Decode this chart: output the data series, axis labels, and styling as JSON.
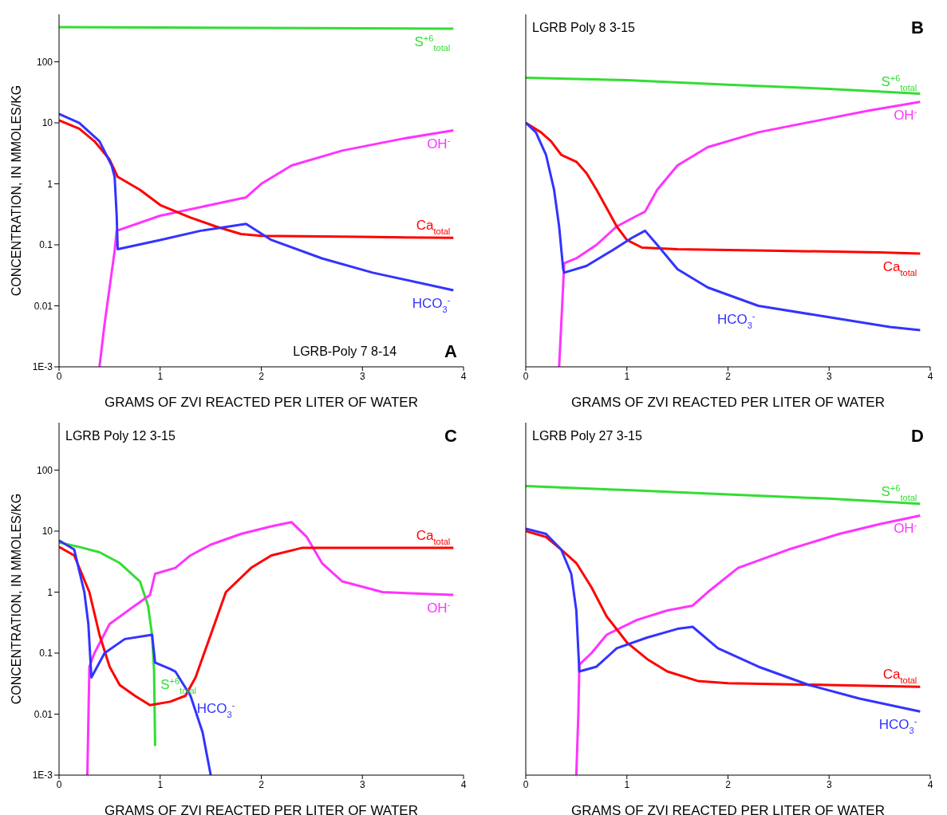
{
  "chart_data": [
    {
      "type": "line",
      "title": "A",
      "annotations": [
        "LGRB-Poly 7 8-14"
      ],
      "xlabel": "GRAMS OF ZVI REACTED PER LITER OF WATER",
      "ylabel": "CONCENTRATION, IN MMOLES/KG",
      "log": "y",
      "xlim": [
        0,
        4
      ],
      "xticks": [
        0,
        1,
        2,
        3,
        4
      ],
      "ylim": [
        0.001,
        600
      ],
      "yticks": [
        {
          "value": 0.001,
          "label": "1E-3"
        },
        0.01,
        0.1,
        1,
        10,
        100
      ],
      "legend": false,
      "grid": false,
      "marker": "none",
      "series": [
        {
          "name": "S$^{+6}$$_{total}$",
          "color": "#33dd33",
          "x": [
            0,
            1,
            2,
            3,
            3.9
          ],
          "values": [
            370,
            365,
            360,
            355,
            350
          ]
        },
        {
          "name": "OH$^{-}$",
          "color": "#ff33ff",
          "x": [
            0.4,
            0.45,
            0.5,
            0.55,
            0.57,
            1,
            1.85,
            2,
            2.3,
            2.8,
            3.4,
            3.9
          ],
          "values": [
            0.001,
            0.005,
            0.02,
            0.08,
            0.17,
            0.3,
            0.6,
            1,
            2,
            3.5,
            5.5,
            7.5
          ]
        },
        {
          "name": "Ca$_{total}$",
          "color": "#ff0000",
          "x": [
            0,
            0.2,
            0.35,
            0.5,
            0.58,
            0.8,
            1,
            1.3,
            1.55,
            1.8,
            2,
            3,
            3.9
          ],
          "values": [
            11,
            8,
            5,
            2.5,
            1.3,
            0.8,
            0.45,
            0.28,
            0.2,
            0.15,
            0.14,
            0.135,
            0.13
          ]
        },
        {
          "name": "HCO$_{3}$$^{-}$",
          "color": "#3333ff",
          "x": [
            0,
            0.2,
            0.4,
            0.52,
            0.55,
            0.57,
            0.58,
            1,
            1.4,
            1.85,
            2.1,
            2.6,
            3.1,
            3.9
          ],
          "values": [
            14,
            10,
            5,
            2,
            1.3,
            0.3,
            0.085,
            0.12,
            0.17,
            0.22,
            0.12,
            0.06,
            0.035,
            0.018
          ]
        }
      ]
    },
    {
      "type": "line",
      "title": "B",
      "annotations": [
        "LGRB Poly 8 3-15"
      ],
      "xlabel": "GRAMS OF ZVI REACTED PER LITER OF WATER",
      "log": "y",
      "xlim": [
        0,
        4
      ],
      "xticks": [
        0,
        1,
        2,
        3,
        4
      ],
      "ylim": [
        0.001,
        600
      ],
      "yticks": [
        0.001,
        0.01,
        0.1,
        1,
        10,
        100
      ],
      "tick_labels": "x",
      "legend": false,
      "grid": false,
      "marker": "none",
      "series": [
        {
          "name": "S$^{+6}$$_{total}$",
          "color": "#33dd33",
          "x": [
            0,
            1,
            2,
            3,
            3.9
          ],
          "values": [
            55,
            50,
            42,
            36,
            30
          ]
        },
        {
          "name": "OH$^{-}$",
          "color": "#ff33ff",
          "x": [
            0.33,
            0.36,
            0.38,
            0.5,
            0.7,
            0.9,
            1.1,
            1.18,
            1.3,
            1.5,
            1.8,
            2.3,
            2.9,
            3.4,
            3.9
          ],
          "values": [
            0.001,
            0.01,
            0.05,
            0.06,
            0.1,
            0.2,
            0.3,
            0.35,
            0.8,
            2,
            4,
            7,
            11,
            16,
            22
          ]
        },
        {
          "name": "Ca$_{total}$",
          "color": "#ff0000",
          "x": [
            0,
            0.15,
            0.25,
            0.35,
            0.5,
            0.6,
            0.7,
            0.8,
            0.9,
            1,
            1.15,
            1.5,
            2.5,
            3.5,
            3.9
          ],
          "values": [
            10,
            7,
            5,
            3,
            2.3,
            1.5,
            0.8,
            0.4,
            0.2,
            0.12,
            0.09,
            0.085,
            0.08,
            0.075,
            0.072
          ]
        },
        {
          "name": "HCO$_{3}$$^{-}$",
          "color": "#3333ff",
          "x": [
            0,
            0.1,
            0.2,
            0.28,
            0.33,
            0.37,
            0.38,
            0.6,
            0.85,
            1.05,
            1.18,
            1.3,
            1.5,
            1.8,
            2.3,
            3,
            3.6,
            3.9
          ],
          "values": [
            10,
            7,
            3,
            0.8,
            0.2,
            0.04,
            0.035,
            0.045,
            0.08,
            0.13,
            0.17,
            0.1,
            0.04,
            0.02,
            0.01,
            0.0065,
            0.0045,
            0.004
          ]
        }
      ]
    },
    {
      "type": "line",
      "title": "C",
      "annotations": [
        "LGRB Poly 12 3-15"
      ],
      "xlabel": "GRAMS OF ZVI REACTED PER LITER OF WATER",
      "ylabel": "CONCENTRATION, IN MMOLES/KG",
      "log": "y",
      "xlim": [
        0,
        4
      ],
      "xticks": [
        0,
        1,
        2,
        3,
        4
      ],
      "ylim": [
        0.001,
        600
      ],
      "yticks": [
        {
          "value": 0.001,
          "label": "1E-3"
        },
        0.01,
        0.1,
        1,
        10,
        100
      ],
      "legend": false,
      "grid": false,
      "marker": "none",
      "series": [
        {
          "name": "S$^{+6}$$_{total}$",
          "color": "#33dd33",
          "x": [
            0,
            0.2,
            0.4,
            0.6,
            0.8,
            0.88,
            0.92,
            0.94,
            0.95
          ],
          "values": [
            6.5,
            5.5,
            4.5,
            3,
            1.5,
            0.6,
            0.2,
            0.05,
            0.003
          ]
        },
        {
          "name": "OH$^{-}$",
          "color": "#ff33ff",
          "x": [
            0.28,
            0.3,
            0.35,
            0.5,
            0.75,
            0.9,
            0.95,
            1.15,
            1.3,
            1.5,
            1.8,
            2.1,
            2.3,
            2.45,
            2.6,
            2.8,
            3.2,
            3.9
          ],
          "values": [
            0.001,
            0.06,
            0.1,
            0.3,
            0.6,
            0.9,
            2,
            2.5,
            4,
            6,
            9,
            12,
            14,
            8,
            3,
            1.5,
            1,
            0.9
          ]
        },
        {
          "name": "Ca$_{total}$",
          "color": "#ff0000",
          "x": [
            0,
            0.15,
            0.3,
            0.4,
            0.5,
            0.6,
            0.75,
            0.9,
            1.1,
            1.25,
            1.35,
            1.5,
            1.65,
            1.9,
            2.1,
            2.4,
            3,
            3.9
          ],
          "values": [
            5.5,
            4,
            1,
            0.2,
            0.06,
            0.03,
            0.02,
            0.014,
            0.016,
            0.02,
            0.04,
            0.2,
            1,
            2.5,
            4,
            5.3,
            5.3,
            5.3
          ]
        },
        {
          "name": "HCO$_{3}$$^{-}$",
          "color": "#3333ff",
          "x": [
            0,
            0.15,
            0.25,
            0.29,
            0.32,
            0.45,
            0.65,
            0.92,
            0.95,
            1.1,
            1.15,
            1.3,
            1.42,
            1.5
          ],
          "values": [
            7,
            5,
            1,
            0.3,
            0.04,
            0.1,
            0.17,
            0.2,
            0.07,
            0.055,
            0.05,
            0.02,
            0.005,
            0.001
          ]
        }
      ]
    },
    {
      "type": "line",
      "title": "D",
      "annotations": [
        "LGRB Poly 27 3-15"
      ],
      "xlabel": "GRAMS OF ZVI REACTED PER LITER OF WATER",
      "log": "y",
      "xlim": [
        0,
        4
      ],
      "xticks": [
        0,
        1,
        2,
        3,
        4
      ],
      "ylim": [
        0.001,
        600
      ],
      "yticks": [
        0.001,
        0.01,
        0.1,
        1,
        10,
        100
      ],
      "tick_labels": "x",
      "legend": false,
      "grid": false,
      "marker": "none",
      "series": [
        {
          "name": "S$^{+6}$$_{total}$",
          "color": "#33dd33",
          "x": [
            0,
            1,
            2,
            3,
            3.9
          ],
          "values": [
            55,
            47,
            40,
            34,
            28
          ]
        },
        {
          "name": "OH$^{-}$",
          "color": "#ff33ff",
          "x": [
            0.5,
            0.52,
            0.53,
            0.65,
            0.8,
            1.1,
            1.4,
            1.65,
            1.8,
            2.1,
            2.6,
            3.1,
            3.5,
            3.9
          ],
          "values": [
            0.001,
            0.01,
            0.065,
            0.1,
            0.2,
            0.35,
            0.5,
            0.6,
            1,
            2.5,
            5,
            9,
            13,
            18
          ]
        },
        {
          "name": "Ca$_{total}$",
          "color": "#ff0000",
          "x": [
            0,
            0.2,
            0.35,
            0.5,
            0.65,
            0.8,
            1,
            1.2,
            1.4,
            1.7,
            2,
            3,
            3.9
          ],
          "values": [
            10,
            8,
            5,
            3,
            1.2,
            0.4,
            0.15,
            0.08,
            0.05,
            0.035,
            0.032,
            0.03,
            0.028
          ]
        },
        {
          "name": "HCO$_{3}$$^{-}$",
          "color": "#3333ff",
          "x": [
            0,
            0.2,
            0.35,
            0.45,
            0.5,
            0.53,
            0.7,
            0.9,
            1.2,
            1.5,
            1.65,
            1.9,
            2.3,
            2.8,
            3.3,
            3.9
          ],
          "values": [
            11,
            9,
            5,
            2,
            0.5,
            0.05,
            0.06,
            0.12,
            0.18,
            0.25,
            0.27,
            0.12,
            0.06,
            0.03,
            0.018,
            0.011
          ]
        }
      ]
    }
  ]
}
